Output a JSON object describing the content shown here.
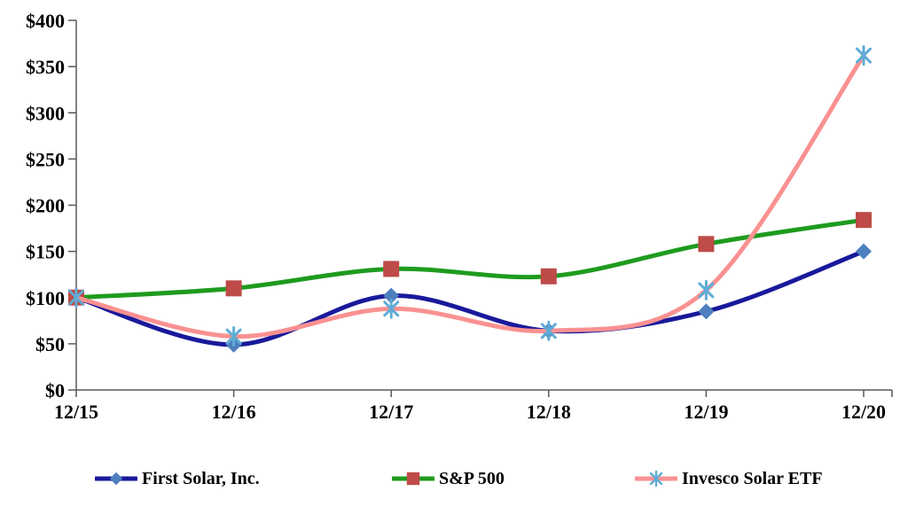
{
  "chart_data": {
    "type": "line",
    "title": "",
    "categories": [
      "12/15",
      "12/16",
      "12/17",
      "12/18",
      "12/19",
      "12/20"
    ],
    "series": [
      {
        "name": "First Solar, Inc.",
        "values": [
          100,
          49,
          102,
          64,
          85,
          150
        ],
        "line_color": "#19199B",
        "marker": "diamond",
        "marker_color": "#4E7FBE"
      },
      {
        "name": "S&P 500",
        "values": [
          100,
          110,
          131,
          123,
          158,
          184
        ],
        "line_color": "#1E9B1E",
        "marker": "square",
        "marker_color": "#BE4B48"
      },
      {
        "name": "Invesco Solar ETF",
        "values": [
          100,
          58,
          88,
          64,
          108,
          362
        ],
        "line_color": "#FA9191",
        "marker": "asterisk",
        "marker_color": "#5FACD6"
      }
    ],
    "x_axis": {
      "tick_labels": [
        "12/15",
        "12/16",
        "12/17",
        "12/18",
        "12/19",
        "12/20"
      ]
    },
    "y_axis": {
      "min": 0,
      "max": 400,
      "step": 50,
      "tick_labels": [
        "$0",
        "$50",
        "$100",
        "$150",
        "$200",
        "$250",
        "$300",
        "$350",
        "$400"
      ]
    },
    "grid": false,
    "legend_position": "bottom",
    "axis_color": "#595959",
    "label_color": "#000000",
    "background_color": "#ffffff",
    "smoothed_lines": true
  }
}
